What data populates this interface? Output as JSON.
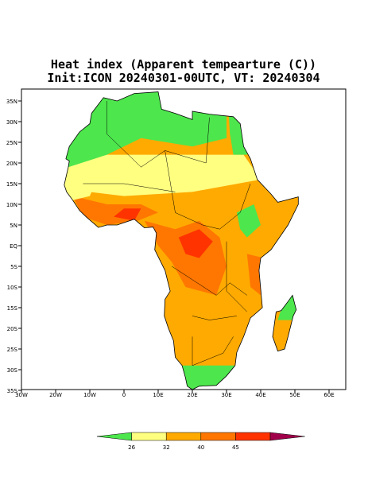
{
  "map": {
    "title": [
      "Heat index (Apparent tempearture (C))",
      "Init:ICON 20240301-00UTC, VT: 20240304"
    ],
    "lon_labels": [
      "30W",
      "20W",
      "10W",
      "0",
      "10E",
      "20E",
      "30E",
      "40E",
      "50E",
      "60E"
    ],
    "lat_labels": [
      "35N",
      "30N",
      "25N",
      "20N",
      "15N",
      "10N",
      "5N",
      "EQ",
      "5S",
      "10S",
      "15S",
      "20S",
      "25S",
      "30S",
      "35S"
    ],
    "colorbar": {
      "colors": [
        "#4de64d",
        "#ffff80",
        "#ffaa00",
        "#ff7700",
        "#ff3300",
        "#a0004a"
      ],
      "labels": [
        "26",
        "32",
        "40",
        "45"
      ]
    }
  }
}
